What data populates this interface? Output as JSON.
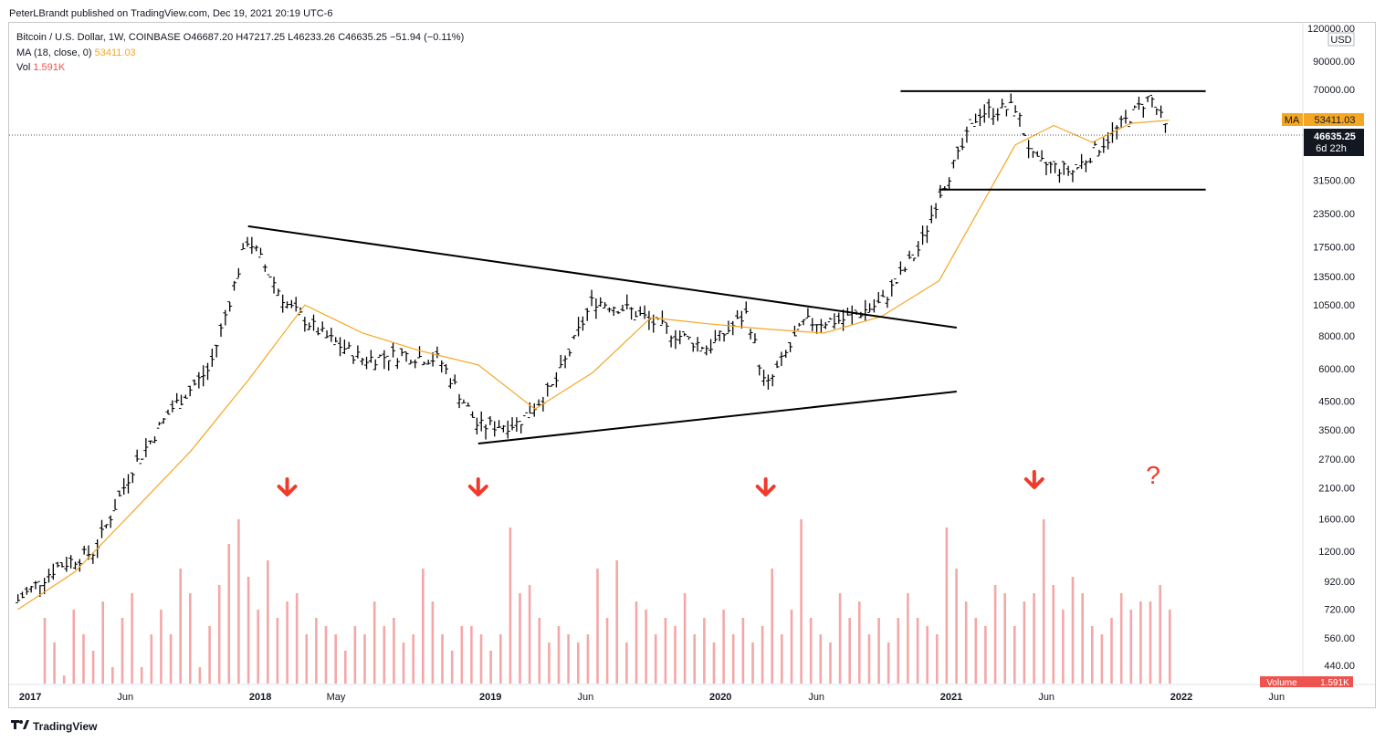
{
  "publisher": "PeterLBrandt published on TradingView.com, Dec 19, 2021 20:19 UTC-6",
  "legend": {
    "symbol": "Bitcoin / U.S. Dollar, 1W, COINBASE",
    "ohlc": "O46687.20  H47217.25  L46233.26  C46635.25  −51.94 (−0.11%)",
    "ma_label": "MA (18, close, 0)",
    "ma_value": "53411.03",
    "vol_label": "Vol",
    "vol_value": "1.591K"
  },
  "axis_currency": "USD",
  "price_badges": {
    "ma_tag": "MA",
    "ma_price": "53411.03",
    "last_price": "46635.25",
    "countdown": "6d 22h"
  },
  "volume_badge": {
    "label": "Volume",
    "value": "1.591K"
  },
  "footer_brand": "TradingView",
  "question_mark": "?",
  "chart_data": {
    "type": "line",
    "price_scale": "log",
    "y_ticks": [
      "120000.00",
      "90000.00",
      "70000.00",
      "53411.03",
      "46635.25",
      "31500.00",
      "23500.00",
      "17500.00",
      "13500.00",
      "10500.00",
      "8000.00",
      "6000.00",
      "4500.00",
      "3500.00",
      "2700.00",
      "2100.00",
      "1600.00",
      "1200.00",
      "920.00",
      "720.00",
      "560.00",
      "440.00"
    ],
    "x_ticks": [
      "2017",
      "Jun",
      "2018",
      "May",
      "2019",
      "Jun",
      "2020",
      "Jun",
      "2021",
      "Jun",
      "2022",
      "Jun"
    ],
    "series": [
      {
        "name": "BTCUSD",
        "color": "#000000",
        "x": [
          "2016-12",
          "2017-02",
          "2017-04",
          "2017-06",
          "2017-08",
          "2017-10",
          "2017-12",
          "2018-02",
          "2018-04",
          "2018-06",
          "2018-08",
          "2018-10",
          "2018-12",
          "2019-02",
          "2019-04",
          "2019-06",
          "2019-08",
          "2019-10",
          "2019-12",
          "2020-02",
          "2020-03",
          "2020-05",
          "2020-07",
          "2020-09",
          "2020-11",
          "2020-12",
          "2021-01",
          "2021-02",
          "2021-04",
          "2021-05",
          "2021-07",
          "2021-09",
          "2021-11",
          "2021-12"
        ],
        "y": [
          780,
          1050,
          1200,
          2500,
          4200,
          6000,
          19000,
          10500,
          8000,
          6500,
          6800,
          6500,
          3600,
          3700,
          5200,
          11000,
          10000,
          8300,
          7200,
          9800,
          5000,
          9000,
          9200,
          10700,
          17500,
          28000,
          39000,
          57000,
          60000,
          37000,
          34000,
          47000,
          66000,
          46635
        ]
      },
      {
        "name": "MA (18, close, 0)",
        "color": "#f5a623",
        "x": [
          "2016-12",
          "2017-03",
          "2017-06",
          "2017-09",
          "2017-12",
          "2018-03",
          "2018-06",
          "2018-09",
          "2018-12",
          "2019-03",
          "2019-06",
          "2019-09",
          "2019-12",
          "2020-03",
          "2020-06",
          "2020-09",
          "2020-12",
          "2021-02",
          "2021-04",
          "2021-06",
          "2021-08",
          "2021-10",
          "2021-12"
        ],
        "y": [
          720,
          1000,
          1700,
          2900,
          5400,
          10500,
          8200,
          7000,
          6200,
          4200,
          5800,
          9400,
          8900,
          8500,
          8200,
          9500,
          13000,
          24000,
          43000,
          51000,
          44000,
          52000,
          53411
        ]
      }
    ],
    "volume": {
      "label": "Vol",
      "last": "1.591K",
      "values": [
        40,
        25,
        5,
        45,
        30,
        20,
        50,
        10,
        40,
        55,
        10,
        30,
        45,
        30,
        70,
        55,
        10,
        35,
        60,
        85,
        100,
        65,
        45,
        75,
        40,
        50,
        55,
        30,
        40,
        35,
        30,
        20,
        35,
        30,
        50,
        35,
        40,
        25,
        30,
        70,
        50,
        30,
        20,
        35,
        35,
        30,
        20,
        30,
        95,
        55,
        60,
        40,
        25,
        35,
        30,
        25,
        30,
        70,
        40,
        75,
        25,
        50,
        45,
        30,
        40,
        35,
        55,
        30,
        40,
        25,
        45,
        30,
        40,
        25,
        35,
        70,
        30,
        45,
        100,
        40,
        30,
        25,
        55,
        40,
        50,
        30,
        40,
        25,
        40,
        55,
        40,
        35,
        30,
        95,
        70,
        50,
        40,
        35,
        60,
        55,
        35,
        50,
        55,
        100,
        60,
        45,
        65,
        55,
        35,
        30,
        40,
        55,
        45,
        50,
        50,
        60,
        45
      ]
    },
    "trendlines": [
      {
        "name": "triangle-upper",
        "from": [
          "2017-12",
          "21000"
        ],
        "to": [
          "2020-11",
          "8600"
        ]
      },
      {
        "name": "triangle-lower",
        "from": [
          "2018-12",
          "3100"
        ],
        "to": [
          "2020-11",
          "4900"
        ]
      },
      {
        "name": "range-top",
        "from": [
          "2020-10",
          "69000"
        ],
        "to": [
          "2021-12",
          "69000"
        ]
      },
      {
        "name": "range-bottom",
        "from": [
          "2020-12",
          "29000"
        ],
        "to": [
          "2021-12",
          "29000"
        ]
      }
    ],
    "annotations": [
      "down-arrow 2018-02",
      "down-arrow 2018-12",
      "down-arrow 2020-03",
      "down-arrow 2021-05",
      "question-mark 2021-12"
    ],
    "colors": {
      "candles": "#000000",
      "ma": "#f5a623",
      "volume": "#f4a7a7",
      "badge_ma": "#f5a623",
      "badge_last": "#131722",
      "arrows": "#ef3b2c"
    },
    "grid": false,
    "legend_position": "top-left"
  }
}
